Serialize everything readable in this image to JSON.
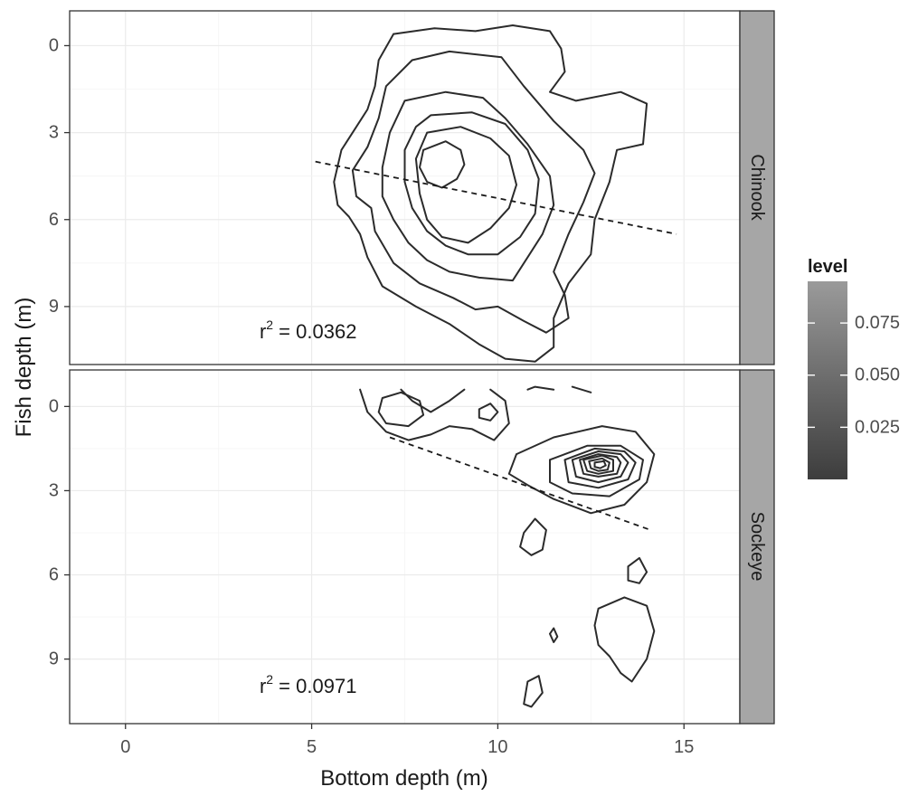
{
  "chart_data": {
    "type": "contour",
    "xlabel": "Bottom depth (m)",
    "ylabel": "Fish depth (m)",
    "xlim": [
      -1.5,
      16.5
    ],
    "x_ticks": [
      0,
      5,
      10,
      15
    ],
    "x_tick_labels": [
      "0",
      "5",
      "10",
      "15"
    ],
    "y_ticks": [
      0,
      3,
      6,
      9
    ],
    "y_tick_labels": [
      "0",
      "3",
      "6",
      "9"
    ],
    "y_reversed": true,
    "grid": true,
    "legend": {
      "title": "level",
      "position": "right",
      "ticks": [
        0.025,
        0.05,
        0.075
      ],
      "tick_labels": [
        "0.025",
        "0.050",
        "0.075"
      ],
      "range": [
        0.0,
        0.095
      ],
      "color_low": "#3d3d3d",
      "color_high": "#9a9a9a"
    },
    "panels": [
      {
        "strip_label": "Chinook",
        "ylim": [
          11.0,
          -1.2
        ],
        "annotation": {
          "base": "r",
          "exponent": "2",
          "value": " = 0.0362",
          "x": 3.6,
          "y": 10.1
        },
        "regression": {
          "x": [
            5.1,
            14.8
          ],
          "y": [
            4.0,
            6.5
          ]
        },
        "contours": [
          [
            [
              7.2,
              -0.4
            ],
            [
              8.3,
              -0.6
            ],
            [
              9.4,
              -0.5
            ],
            [
              10.4,
              -0.7
            ],
            [
              11.4,
              -0.5
            ],
            [
              11.7,
              0.1
            ],
            [
              11.8,
              0.9
            ],
            [
              11.4,
              1.6
            ],
            [
              12.1,
              1.9
            ],
            [
              13.3,
              1.6
            ],
            [
              14.0,
              2.0
            ],
            [
              13.9,
              3.4
            ],
            [
              13.2,
              3.6
            ],
            [
              13.0,
              4.7
            ],
            [
              12.6,
              6.0
            ],
            [
              12.5,
              7.2
            ],
            [
              11.9,
              8.2
            ],
            [
              11.5,
              9.4
            ],
            [
              11.5,
              10.4
            ],
            [
              11.0,
              10.9
            ],
            [
              10.2,
              10.8
            ],
            [
              9.5,
              10.3
            ],
            [
              8.7,
              9.6
            ],
            [
              7.8,
              9.0
            ],
            [
              6.9,
              8.3
            ],
            [
              6.5,
              7.3
            ],
            [
              6.3,
              6.5
            ],
            [
              6.0,
              5.9
            ],
            [
              5.7,
              5.5
            ],
            [
              5.6,
              4.7
            ],
            [
              5.8,
              3.6
            ],
            [
              6.2,
              2.8
            ],
            [
              6.5,
              2.2
            ],
            [
              6.7,
              1.4
            ],
            [
              6.8,
              0.5
            ],
            [
              7.2,
              -0.4
            ]
          ],
          [
            [
              7.7,
              0.5
            ],
            [
              8.7,
              0.2
            ],
            [
              10.1,
              0.4
            ],
            [
              10.7,
              1.4
            ],
            [
              11.5,
              2.6
            ],
            [
              12.3,
              3.6
            ],
            [
              12.6,
              4.4
            ],
            [
              12.3,
              5.4
            ],
            [
              11.9,
              6.5
            ],
            [
              11.5,
              7.8
            ],
            [
              11.8,
              8.6
            ],
            [
              11.9,
              9.4
            ],
            [
              11.3,
              9.9
            ],
            [
              10.7,
              9.5
            ],
            [
              10.0,
              9.0
            ],
            [
              9.4,
              9.1
            ],
            [
              8.8,
              8.7
            ],
            [
              7.9,
              8.2
            ],
            [
              7.2,
              7.5
            ],
            [
              6.7,
              6.4
            ],
            [
              6.6,
              5.6
            ],
            [
              6.2,
              5.2
            ],
            [
              6.1,
              4.3
            ],
            [
              6.5,
              3.5
            ],
            [
              6.8,
              2.5
            ],
            [
              7.0,
              1.4
            ],
            [
              7.7,
              0.5
            ]
          ],
          [
            [
              7.5,
              1.9
            ],
            [
              8.6,
              1.6
            ],
            [
              9.6,
              1.8
            ],
            [
              10.2,
              2.5
            ],
            [
              10.8,
              3.4
            ],
            [
              11.4,
              4.5
            ],
            [
              11.5,
              5.5
            ],
            [
              11.2,
              6.5
            ],
            [
              10.8,
              7.3
            ],
            [
              10.4,
              8.1
            ],
            [
              9.5,
              8.0
            ],
            [
              8.7,
              7.8
            ],
            [
              8.1,
              7.4
            ],
            [
              7.6,
              6.8
            ],
            [
              7.2,
              6.0
            ],
            [
              6.9,
              5.2
            ],
            [
              6.9,
              4.2
            ],
            [
              7.1,
              3.0
            ],
            [
              7.5,
              1.9
            ]
          ],
          [
            [
              8.2,
              2.4
            ],
            [
              9.3,
              2.3
            ],
            [
              10.2,
              2.7
            ],
            [
              10.8,
              3.6
            ],
            [
              11.1,
              4.6
            ],
            [
              11.0,
              5.8
            ],
            [
              10.6,
              6.6
            ],
            [
              10.0,
              7.2
            ],
            [
              9.2,
              7.2
            ],
            [
              8.6,
              6.9
            ],
            [
              8.1,
              6.4
            ],
            [
              7.7,
              5.6
            ],
            [
              7.5,
              4.7
            ],
            [
              7.5,
              3.6
            ],
            [
              7.8,
              2.8
            ],
            [
              8.2,
              2.4
            ]
          ],
          [
            [
              8.1,
              3.0
            ],
            [
              9.0,
              2.8
            ],
            [
              9.8,
              3.2
            ],
            [
              10.3,
              3.8
            ],
            [
              10.5,
              4.8
            ],
            [
              10.3,
              5.6
            ],
            [
              9.8,
              6.3
            ],
            [
              9.2,
              6.8
            ],
            [
              8.5,
              6.6
            ],
            [
              8.1,
              6.0
            ],
            [
              7.9,
              5.1
            ],
            [
              7.8,
              3.9
            ],
            [
              8.1,
              3.0
            ]
          ],
          [
            [
              8.0,
              3.6
            ],
            [
              8.6,
              3.3
            ],
            [
              9.0,
              3.6
            ],
            [
              9.1,
              4.1
            ],
            [
              8.9,
              4.6
            ],
            [
              8.5,
              4.9
            ],
            [
              8.1,
              4.7
            ],
            [
              7.9,
              4.2
            ],
            [
              8.0,
              3.6
            ]
          ]
        ]
      },
      {
        "strip_label": "Sockeye",
        "ylim": [
          11.3,
          -1.3
        ],
        "annotation": {
          "base": "r",
          "exponent": "2",
          "value": " = 0.0971",
          "x": 3.6,
          "y": 10.2
        },
        "regression": {
          "x": [
            7.1,
            14.1
          ],
          "y": [
            1.1,
            4.4
          ]
        },
        "contours": [
          [
            [
              6.3,
              -0.6
            ],
            [
              6.5,
              0.2
            ],
            [
              7.0,
              0.9
            ],
            [
              7.6,
              1.2
            ],
            [
              8.2,
              1.0
            ],
            [
              8.7,
              0.7
            ],
            [
              9.3,
              0.8
            ],
            [
              9.9,
              1.2
            ],
            [
              10.3,
              0.6
            ],
            [
              10.2,
              -0.2
            ],
            [
              9.8,
              -0.6
            ]
          ],
          [
            [
              9.1,
              -0.6
            ],
            [
              8.7,
              -0.2
            ],
            [
              8.2,
              0.2
            ],
            [
              7.7,
              -0.2
            ],
            [
              7.4,
              -0.6
            ]
          ],
          [
            [
              6.9,
              -0.3
            ],
            [
              7.4,
              -0.5
            ],
            [
              7.9,
              -0.2
            ],
            [
              8.0,
              0.3
            ],
            [
              7.6,
              0.7
            ],
            [
              7.0,
              0.6
            ],
            [
              6.8,
              0.2
            ],
            [
              6.9,
              -0.3
            ]
          ],
          [
            [
              9.5,
              0.1
            ],
            [
              9.8,
              -0.1
            ],
            [
              10.0,
              0.2
            ],
            [
              9.8,
              0.5
            ],
            [
              9.5,
              0.4
            ],
            [
              9.5,
              0.1
            ]
          ],
          [
            [
              10.8,
              -0.6
            ],
            [
              11.0,
              -0.7
            ],
            [
              11.5,
              -0.6
            ]
          ],
          [
            [
              12.0,
              -0.7
            ],
            [
              12.5,
              -0.5
            ]
          ],
          [
            [
              10.5,
              1.7
            ],
            [
              11.5,
              1.1
            ],
            [
              12.8,
              0.7
            ],
            [
              13.7,
              0.9
            ],
            [
              14.2,
              1.7
            ],
            [
              14.0,
              2.7
            ],
            [
              13.4,
              3.5
            ],
            [
              12.5,
              3.8
            ],
            [
              11.5,
              3.3
            ],
            [
              10.8,
              2.8
            ],
            [
              10.3,
              2.4
            ],
            [
              10.5,
              1.7
            ]
          ],
          [
            [
              11.4,
              1.9
            ],
            [
              12.4,
              1.4
            ],
            [
              13.3,
              1.4
            ],
            [
              13.9,
              1.9
            ],
            [
              13.8,
              2.6
            ],
            [
              13.0,
              3.2
            ],
            [
              12.0,
              3.1
            ],
            [
              11.4,
              2.7
            ],
            [
              11.4,
              1.9
            ]
          ],
          [
            [
              11.8,
              1.9
            ],
            [
              12.6,
              1.5
            ],
            [
              13.4,
              1.6
            ],
            [
              13.7,
              2.0
            ],
            [
              13.5,
              2.6
            ],
            [
              12.7,
              2.9
            ],
            [
              11.9,
              2.7
            ],
            [
              11.8,
              1.9
            ]
          ],
          [
            [
              12.0,
              1.9
            ],
            [
              12.7,
              1.6
            ],
            [
              13.3,
              1.7
            ],
            [
              13.5,
              2.0
            ],
            [
              13.3,
              2.5
            ],
            [
              12.7,
              2.7
            ],
            [
              12.1,
              2.5
            ],
            [
              12.0,
              1.9
            ]
          ],
          [
            [
              12.2,
              1.9
            ],
            [
              12.7,
              1.7
            ],
            [
              13.2,
              1.8
            ],
            [
              13.3,
              2.0
            ],
            [
              13.2,
              2.4
            ],
            [
              12.7,
              2.5
            ],
            [
              12.3,
              2.4
            ],
            [
              12.2,
              1.9
            ]
          ],
          [
            [
              12.3,
              1.9
            ],
            [
              12.8,
              1.75
            ],
            [
              13.1,
              1.9
            ],
            [
              13.1,
              2.3
            ],
            [
              12.7,
              2.4
            ],
            [
              12.4,
              2.3
            ],
            [
              12.3,
              1.9
            ]
          ],
          [
            [
              12.45,
              1.95
            ],
            [
              12.8,
              1.85
            ],
            [
              13.0,
              2.0
            ],
            [
              12.95,
              2.25
            ],
            [
              12.7,
              2.3
            ],
            [
              12.5,
              2.2
            ],
            [
              12.45,
              1.95
            ]
          ],
          [
            [
              12.6,
              2.0
            ],
            [
              12.85,
              1.95
            ],
            [
              12.9,
              2.1
            ],
            [
              12.75,
              2.2
            ],
            [
              12.6,
              2.15
            ],
            [
              12.6,
              2.0
            ]
          ],
          [
            [
              10.7,
              4.5
            ],
            [
              11.0,
              4.0
            ],
            [
              11.3,
              4.4
            ],
            [
              11.2,
              5.1
            ],
            [
              10.9,
              5.3
            ],
            [
              10.6,
              5.0
            ],
            [
              10.7,
              4.5
            ]
          ],
          [
            [
              13.5,
              5.7
            ],
            [
              13.8,
              5.4
            ],
            [
              14.0,
              5.9
            ],
            [
              13.8,
              6.3
            ],
            [
              13.5,
              6.2
            ],
            [
              13.5,
              5.7
            ]
          ],
          [
            [
              11.4,
              8.1
            ],
            [
              11.5,
              7.9
            ],
            [
              11.6,
              8.2
            ],
            [
              11.5,
              8.4
            ],
            [
              11.4,
              8.1
            ]
          ],
          [
            [
              12.7,
              7.2
            ],
            [
              13.4,
              6.8
            ],
            [
              14.0,
              7.1
            ],
            [
              14.2,
              8.0
            ],
            [
              14.0,
              9.0
            ],
            [
              13.6,
              9.8
            ],
            [
              13.3,
              9.5
            ],
            [
              13.0,
              8.9
            ],
            [
              12.7,
              8.5
            ],
            [
              12.6,
              7.8
            ],
            [
              12.7,
              7.2
            ]
          ],
          [
            [
              10.8,
              9.8
            ],
            [
              11.1,
              9.6
            ],
            [
              11.2,
              10.2
            ],
            [
              10.9,
              10.7
            ],
            [
              10.7,
              10.6
            ],
            [
              10.8,
              9.8
            ]
          ]
        ]
      }
    ]
  }
}
